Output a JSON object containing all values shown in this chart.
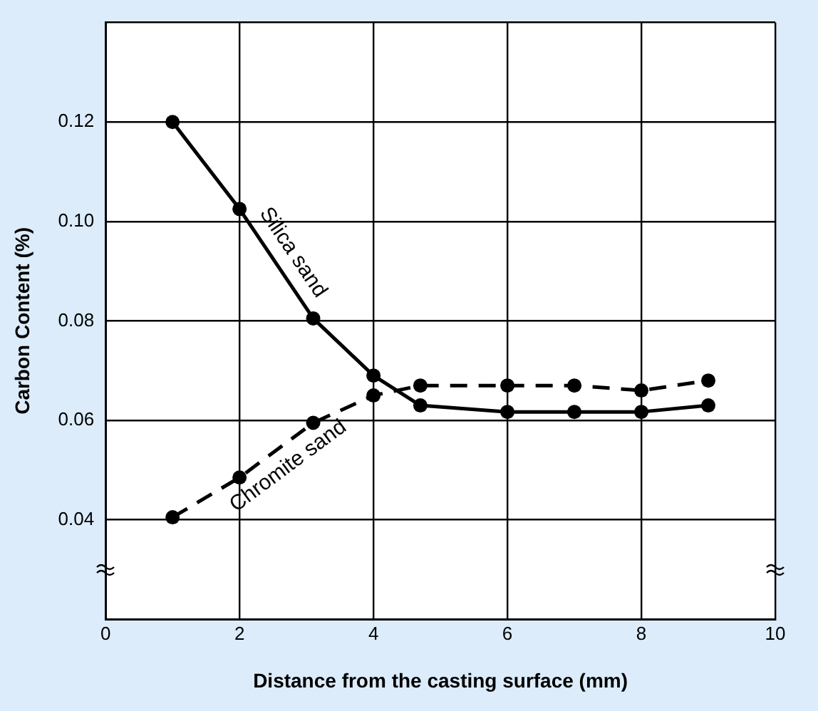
{
  "chart_data": {
    "type": "line",
    "xlabel": "Distance from the casting surface (mm)",
    "ylabel": "Carbon Content (%)",
    "xlim": [
      0,
      10
    ],
    "xticks": [
      0,
      2,
      4,
      6,
      8,
      10
    ],
    "ylim": [
      0.02,
      0.14
    ],
    "yticks": [
      {
        "value": 0.02,
        "label": null
      },
      0.04,
      0.06,
      0.08,
      {
        "value": 0.1,
        "label": "0.10"
      },
      0.12,
      {
        "value": 0.14,
        "label": null
      }
    ],
    "grid": true,
    "legend": false,
    "marker": "circle",
    "series": [
      {
        "name": "Silica sand",
        "color": "#000000",
        "line_style": "solid",
        "x": [
          1,
          2,
          3.1,
          4,
          4.7,
          6,
          7,
          8,
          9
        ],
        "values": [
          0.12,
          0.1025,
          0.0805,
          0.069,
          0.063,
          0.0617,
          0.0617,
          0.0617,
          0.063
        ]
      },
      {
        "name": "Chromite sand",
        "color": "#000000",
        "line_style": "dashed",
        "x": [
          1,
          2,
          3.1,
          4,
          4.7,
          6,
          7,
          8,
          9
        ],
        "values": [
          0.0405,
          0.0485,
          0.0595,
          0.065,
          0.067,
          0.067,
          0.067,
          0.066,
          0.068
        ]
      }
    ]
  }
}
